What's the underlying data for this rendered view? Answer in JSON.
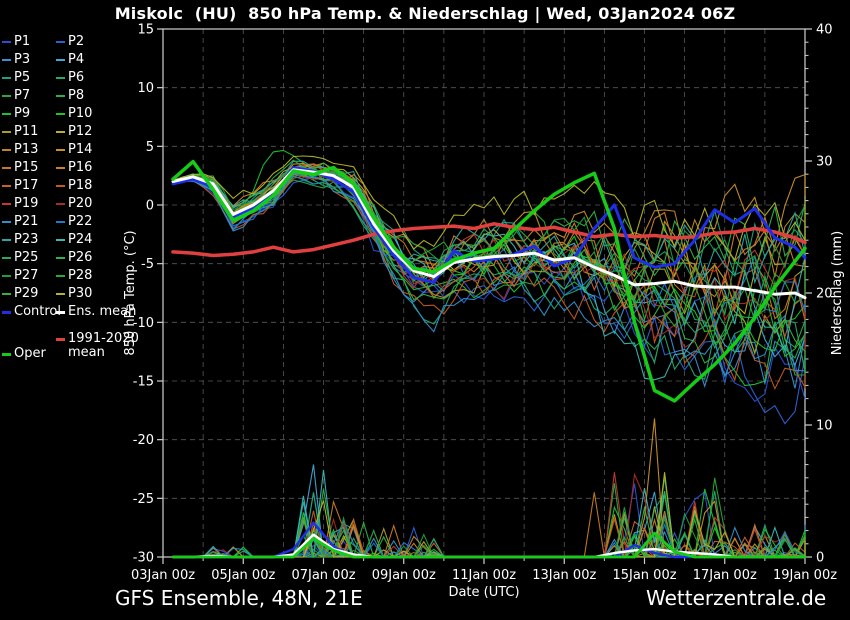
{
  "title": "Miskolc  (HU)  850 hPa Temp. & Niederschlag | Wed, 03Jan2024 06Z",
  "footer": {
    "left": "GFS Ensemble, 48N, 21E",
    "right": "Wetterzentrale.de"
  },
  "legend": {
    "member_labels": [
      "P1",
      "P2",
      "P3",
      "P4",
      "P5",
      "P6",
      "P7",
      "P8",
      "P9",
      "P10",
      "P11",
      "P12",
      "P13",
      "P14",
      "P15",
      "P16",
      "P17",
      "P18",
      "P19",
      "P20",
      "P21",
      "P22",
      "P23",
      "P24",
      "P25",
      "P26",
      "P27",
      "P28",
      "P29",
      "P30"
    ],
    "member_colors": [
      "#2a4fd4",
      "#2a62d4",
      "#3a8ed1",
      "#3fa8d8",
      "#20a080",
      "#23aa6e",
      "#27a94a",
      "#2bb23e",
      "#1fc033",
      "#1cc524",
      "#aa9d26",
      "#bfae28",
      "#c08428",
      "#ca9026",
      "#c87a20",
      "#d07d28",
      "#c9602a",
      "#c25a22",
      "#c43b2b",
      "#a62b24",
      "#2e8fca",
      "#2079cf",
      "#28a8a4",
      "#3ab7b7",
      "#28a95e",
      "#2fb14b",
      "#219b3b",
      "#28a934",
      "#37b13b",
      "#b4b428"
    ],
    "control": {
      "label": "Control",
      "color": "#1f2fe8"
    },
    "ens_mean": {
      "label": "Ens. mean",
      "color": "#ffffff"
    },
    "climate_mean": {
      "label": "1991-2020 mean",
      "color": "#e04040"
    },
    "oper": {
      "label": "Oper",
      "color": "#16cc16"
    }
  },
  "chart_data": {
    "type": "line",
    "title": "Miskolc  (HU)  850 hPa Temp. & Niederschlag | Wed, 03Jan2024 06Z",
    "xlabel": "Date (UTC)",
    "ylabel_left": "850 hPa Temp. (°C)",
    "ylabel_right": "Niederschlag (mm)",
    "ylim_left": [
      -30,
      15
    ],
    "ylim_right": [
      0,
      40
    ],
    "y_left_ticks": [
      15,
      10,
      5,
      0,
      -5,
      -10,
      -15,
      -20,
      -25,
      -30
    ],
    "y_right_ticks": [
      0,
      10,
      20,
      30,
      40
    ],
    "x_ticks": [
      "03Jan 00z",
      "05Jan 00z",
      "07Jan 00z",
      "09Jan 00z",
      "11Jan 00z",
      "13Jan 00z",
      "15Jan 00z",
      "17Jan 00z",
      "19Jan 00z"
    ],
    "x_days_total": 16,
    "series_start": "03Jan 06z",
    "series_step_hours": 12,
    "grid": "dashed, 1 day vertical, 5 degC horizontal",
    "legend_position": "outside-left",
    "series": {
      "ens_mean_temp": [
        2.0,
        2.4,
        1.8,
        -0.8,
        0.0,
        1.2,
        3.0,
        2.8,
        2.5,
        1.5,
        -1.6,
        -3.9,
        -5.6,
        -6.1,
        -4.9,
        -4.6,
        -4.4,
        -4.3,
        -4.1,
        -4.7,
        -4.5,
        -5.3,
        -6.0,
        -6.8,
        -6.7,
        -6.5,
        -6.9,
        -7.0,
        -7.0,
        -7.3,
        -7.6,
        -7.5,
        -7.9
      ],
      "control_temp": [
        1.8,
        2.2,
        1.5,
        -1.0,
        -0.3,
        1.0,
        3.2,
        2.9,
        2.2,
        1.1,
        -1.9,
        -4.3,
        -6.2,
        -6.6,
        -3.9,
        -4.8,
        -4.6,
        -4.2,
        -3.5,
        -5.2,
        -4.5,
        -2.0,
        0.0,
        -4.5,
        -5.3,
        -5.0,
        -3.0,
        -0.4,
        -1.5,
        -0.3,
        -2.8,
        -3.6,
        -4.5
      ],
      "oper_temp": [
        2.2,
        3.7,
        1.3,
        -1.3,
        -0.5,
        0.8,
        2.9,
        2.6,
        3.2,
        1.8,
        -1.1,
        -3.6,
        -5.4,
        -5.7,
        -4.7,
        -4.1,
        -3.7,
        -2.1,
        -0.5,
        0.9,
        1.9,
        2.7,
        -2.0,
        -10.0,
        -15.8,
        -16.7,
        -15.1,
        -13.6,
        -11.8,
        -9.6,
        -7.0,
        -4.8,
        -3.7
      ],
      "climate_mean_temp": [
        -4.0,
        -4.1,
        -4.3,
        -4.2,
        -4.0,
        -3.6,
        -4.0,
        -3.8,
        -3.4,
        -3.0,
        -2.5,
        -2.2,
        -2.0,
        -1.9,
        -1.8,
        -2.0,
        -1.6,
        -1.9,
        -2.1,
        -1.9,
        -2.3,
        -2.7,
        -2.5,
        -2.7,
        -2.6,
        -2.8,
        -2.7,
        -2.4,
        -2.3,
        -2.0,
        -2.3,
        -2.8,
        -3.2
      ],
      "ens_mean_precip": [
        0,
        0,
        0.1,
        0,
        0,
        0,
        0.2,
        1.7,
        0.6,
        0.2,
        0,
        0,
        0,
        0,
        0,
        0,
        0,
        0,
        0,
        0,
        0,
        0,
        0.3,
        0.5,
        0.6,
        0.4,
        0.3,
        0.2,
        0,
        0,
        0,
        0,
        0
      ],
      "control_precip": [
        0,
        0,
        0,
        0,
        0,
        0,
        0.6,
        2.6,
        0.8,
        0,
        0,
        0,
        0,
        0,
        0,
        0,
        0,
        0,
        0,
        0,
        0,
        0,
        0,
        0.9,
        0.3,
        0,
        0,
        0,
        0,
        0,
        0,
        0,
        0
      ],
      "oper_precip": [
        0,
        0,
        0,
        0,
        0,
        0,
        0,
        1.4,
        0.5,
        0,
        0,
        0,
        0,
        0,
        0,
        0,
        0,
        0,
        0,
        0,
        0,
        0,
        0,
        0,
        1.8,
        0.4,
        0,
        0,
        0,
        0,
        0,
        0,
        0
      ]
    },
    "ensemble_members": {
      "count": 30,
      "note": "30 perturbed member traces span a widening envelope around the ensemble mean; spread is the approximate half-width in degC at each 12h step; member precipitation spikes occur 06-07Jan (up to ~7mm) and 14-16Jan (up to ~10mm)",
      "spread_half_width": [
        0.7,
        0.8,
        1.0,
        1.2,
        1.2,
        1.3,
        1.0,
        1.2,
        1.5,
        1.8,
        2.2,
        2.6,
        3.0,
        3.2,
        3.4,
        3.6,
        3.8,
        4.0,
        4.2,
        4.4,
        4.6,
        5.2,
        5.8,
        6.4,
        7.0,
        7.4,
        7.8,
        8.2,
        8.4,
        8.6,
        8.8,
        9.0,
        9.2
      ]
    },
    "colors": {
      "background": "#000000",
      "axis": "#d0d0d0",
      "grid": "#585858",
      "control": "#1f2fe8",
      "ens_mean": "#ffffff",
      "oper": "#16cc16",
      "climate_mean": "#e04040"
    }
  }
}
